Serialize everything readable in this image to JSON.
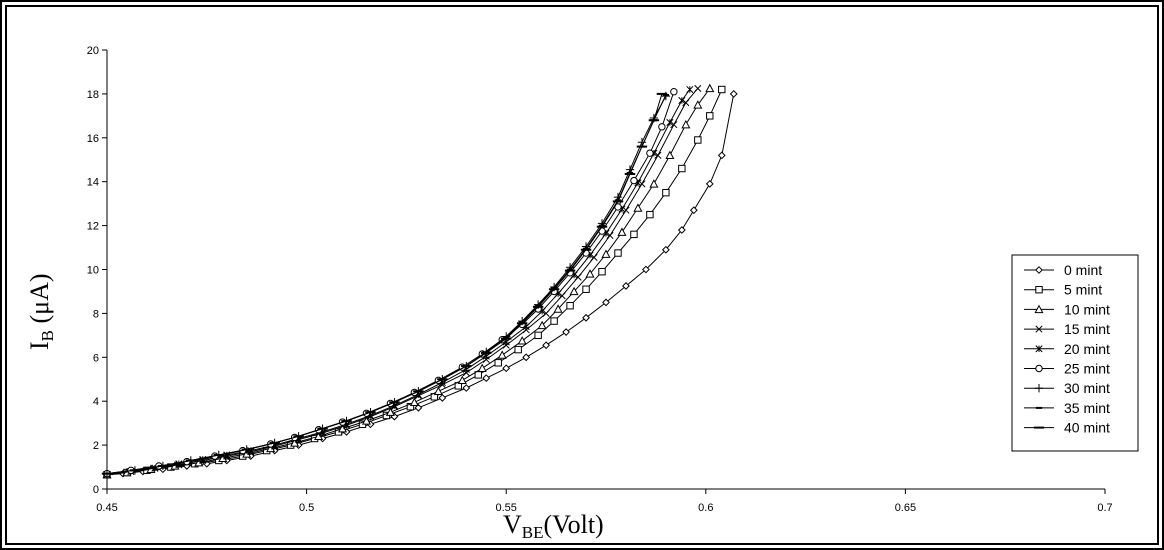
{
  "chart_data": {
    "type": "line",
    "xlabel": {
      "main": "V",
      "sub": "BE",
      "suffix": "(Volt)"
    },
    "ylabel": {
      "main": "I",
      "sub": "B",
      "suffix": " (μA)"
    },
    "xlim": [
      0.45,
      0.7
    ],
    "ylim": [
      0,
      20
    ],
    "x_ticks": [
      0.45,
      0.5,
      0.55,
      0.6,
      0.65,
      0.7
    ],
    "x_tick_labels": [
      "0.45",
      "0.5",
      "0.55",
      "0.6",
      "0.65",
      "0.7"
    ],
    "y_ticks": [
      0,
      2,
      4,
      6,
      8,
      10,
      12,
      14,
      16,
      18,
      20
    ],
    "y_tick_labels": [
      "0",
      "2",
      "4",
      "6",
      "8",
      "10",
      "12",
      "14",
      "16",
      "18",
      "20"
    ],
    "grid": false,
    "legend_position": "right",
    "series": [
      {
        "name": "0  mint",
        "marker": "diamond",
        "x": [
          0.45,
          0.454,
          0.459,
          0.464,
          0.47,
          0.475,
          0.48,
          0.486,
          0.492,
          0.498,
          0.504,
          0.51,
          0.516,
          0.522,
          0.528,
          0.534,
          0.54,
          0.545,
          0.55,
          0.555,
          0.56,
          0.565,
          0.57,
          0.575,
          0.58,
          0.585,
          0.59,
          0.594,
          0.597,
          0.601,
          0.604,
          0.607
        ],
        "y": [
          0.65,
          0.7,
          0.8,
          0.9,
          1.05,
          1.15,
          1.3,
          1.5,
          1.75,
          2.0,
          2.3,
          2.6,
          2.95,
          3.3,
          3.7,
          4.15,
          4.6,
          5.05,
          5.5,
          6.0,
          6.55,
          7.15,
          7.8,
          8.5,
          9.25,
          10.0,
          10.9,
          11.8,
          12.7,
          13.9,
          15.2,
          18.0
        ]
      },
      {
        "name": "5 mint",
        "marker": "square",
        "x": [
          0.45,
          0.455,
          0.46,
          0.466,
          0.472,
          0.478,
          0.484,
          0.49,
          0.496,
          0.502,
          0.508,
          0.514,
          0.52,
          0.526,
          0.532,
          0.538,
          0.543,
          0.548,
          0.553,
          0.558,
          0.562,
          0.566,
          0.57,
          0.574,
          0.578,
          0.582,
          0.586,
          0.59,
          0.594,
          0.598,
          0.601,
          0.604
        ],
        "y": [
          0.65,
          0.75,
          0.85,
          1.0,
          1.15,
          1.3,
          1.5,
          1.75,
          2.0,
          2.3,
          2.6,
          2.95,
          3.35,
          3.75,
          4.2,
          4.7,
          5.2,
          5.75,
          6.35,
          7.0,
          7.65,
          8.35,
          9.1,
          9.9,
          10.75,
          11.6,
          12.5,
          13.5,
          14.6,
          15.9,
          17.0,
          18.2
        ]
      },
      {
        "name": "10 mint",
        "marker": "triangle",
        "x": [
          0.45,
          0.455,
          0.461,
          0.467,
          0.473,
          0.479,
          0.485,
          0.491,
          0.497,
          0.503,
          0.509,
          0.515,
          0.521,
          0.527,
          0.533,
          0.539,
          0.544,
          0.549,
          0.554,
          0.559,
          0.563,
          0.567,
          0.571,
          0.575,
          0.579,
          0.583,
          0.587,
          0.591,
          0.595,
          0.598,
          0.601
        ],
        "y": [
          0.65,
          0.75,
          0.9,
          1.05,
          1.2,
          1.4,
          1.6,
          1.85,
          2.1,
          2.4,
          2.75,
          3.1,
          3.5,
          3.95,
          4.45,
          4.95,
          5.5,
          6.1,
          6.75,
          7.45,
          8.2,
          9.0,
          9.8,
          10.7,
          11.7,
          12.8,
          13.9,
          15.2,
          16.6,
          17.5,
          18.25
        ]
      },
      {
        "name": "15 mint",
        "marker": "x",
        "x": [
          0.45,
          0.456,
          0.462,
          0.468,
          0.474,
          0.48,
          0.486,
          0.492,
          0.498,
          0.504,
          0.51,
          0.516,
          0.522,
          0.528,
          0.534,
          0.54,
          0.545,
          0.55,
          0.555,
          0.56,
          0.564,
          0.568,
          0.572,
          0.576,
          0.58,
          0.584,
          0.588,
          0.592,
          0.595,
          0.598
        ],
        "y": [
          0.65,
          0.8,
          0.95,
          1.1,
          1.3,
          1.5,
          1.7,
          1.95,
          2.25,
          2.55,
          2.9,
          3.3,
          3.75,
          4.25,
          4.75,
          5.3,
          5.9,
          6.55,
          7.25,
          8.0,
          8.8,
          9.65,
          10.55,
          11.55,
          12.7,
          13.9,
          15.2,
          16.6,
          17.6,
          18.25
        ]
      },
      {
        "name": "20 mint",
        "marker": "asterisk",
        "x": [
          0.45,
          0.456,
          0.462,
          0.468,
          0.474,
          0.48,
          0.486,
          0.492,
          0.498,
          0.504,
          0.51,
          0.516,
          0.522,
          0.528,
          0.534,
          0.54,
          0.545,
          0.55,
          0.555,
          0.559,
          0.563,
          0.567,
          0.571,
          0.575,
          0.579,
          0.583,
          0.587,
          0.591,
          0.594,
          0.596
        ],
        "y": [
          0.65,
          0.8,
          0.95,
          1.15,
          1.35,
          1.55,
          1.75,
          2.0,
          2.3,
          2.6,
          2.95,
          3.35,
          3.8,
          4.3,
          4.85,
          5.45,
          6.05,
          6.7,
          7.4,
          8.1,
          8.9,
          9.75,
          10.65,
          11.65,
          12.75,
          13.95,
          15.3,
          16.7,
          17.7,
          18.2
        ]
      },
      {
        "name": "25 mint",
        "marker": "circle",
        "x": [
          0.45,
          0.456,
          0.463,
          0.47,
          0.477,
          0.484,
          0.491,
          0.497,
          0.503,
          0.509,
          0.515,
          0.521,
          0.527,
          0.533,
          0.539,
          0.544,
          0.549,
          0.554,
          0.558,
          0.562,
          0.566,
          0.57,
          0.574,
          0.578,
          0.582,
          0.586,
          0.589,
          0.592
        ],
        "y": [
          0.7,
          0.85,
          1.05,
          1.25,
          1.5,
          1.75,
          2.05,
          2.35,
          2.7,
          3.05,
          3.45,
          3.9,
          4.4,
          4.95,
          5.55,
          6.15,
          6.8,
          7.5,
          8.2,
          9.0,
          9.85,
          10.75,
          11.75,
          12.85,
          14.05,
          15.3,
          16.5,
          18.1
        ]
      },
      {
        "name": "30 mint",
        "marker": "plus",
        "x": [
          0.45,
          0.457,
          0.464,
          0.471,
          0.478,
          0.485,
          0.492,
          0.498,
          0.504,
          0.51,
          0.516,
          0.522,
          0.528,
          0.534,
          0.54,
          0.545,
          0.55,
          0.554,
          0.558,
          0.562,
          0.566,
          0.57,
          0.574,
          0.578,
          0.581,
          0.584,
          0.587,
          0.59
        ],
        "y": [
          0.7,
          0.85,
          1.05,
          1.3,
          1.55,
          1.8,
          2.1,
          2.4,
          2.75,
          3.1,
          3.5,
          3.95,
          4.45,
          5.0,
          5.6,
          6.25,
          6.95,
          7.65,
          8.4,
          9.2,
          10.1,
          11.05,
          12.1,
          13.3,
          14.55,
          15.8,
          16.9,
          17.9
        ]
      },
      {
        "name": "35 mint",
        "marker": "dash",
        "x": [
          0.45,
          0.457,
          0.464,
          0.471,
          0.478,
          0.485,
          0.492,
          0.498,
          0.504,
          0.51,
          0.516,
          0.522,
          0.528,
          0.534,
          0.54,
          0.545,
          0.55,
          0.554,
          0.558,
          0.562,
          0.566,
          0.57,
          0.574,
          0.578,
          0.581,
          0.584,
          0.587,
          0.59
        ],
        "y": [
          0.7,
          0.85,
          1.05,
          1.3,
          1.55,
          1.8,
          2.1,
          2.4,
          2.75,
          3.1,
          3.5,
          3.95,
          4.45,
          5.0,
          5.6,
          6.2,
          6.9,
          7.6,
          8.35,
          9.15,
          10.0,
          10.95,
          12.0,
          13.15,
          14.4,
          15.6,
          16.8,
          17.95
        ]
      },
      {
        "name": "40 mint",
        "marker": "longdash",
        "x": [
          0.45,
          0.457,
          0.464,
          0.471,
          0.478,
          0.485,
          0.492,
          0.498,
          0.504,
          0.51,
          0.516,
          0.522,
          0.528,
          0.534,
          0.54,
          0.545,
          0.55,
          0.554,
          0.558,
          0.562,
          0.566,
          0.57,
          0.574,
          0.578,
          0.581,
          0.584,
          0.587,
          0.589
        ],
        "y": [
          0.7,
          0.85,
          1.05,
          1.3,
          1.55,
          1.8,
          2.1,
          2.4,
          2.75,
          3.1,
          3.5,
          3.95,
          4.45,
          5.0,
          5.6,
          6.2,
          6.85,
          7.55,
          8.3,
          9.1,
          9.95,
          10.9,
          11.95,
          13.1,
          14.35,
          15.6,
          16.8,
          18.0
        ]
      }
    ]
  }
}
